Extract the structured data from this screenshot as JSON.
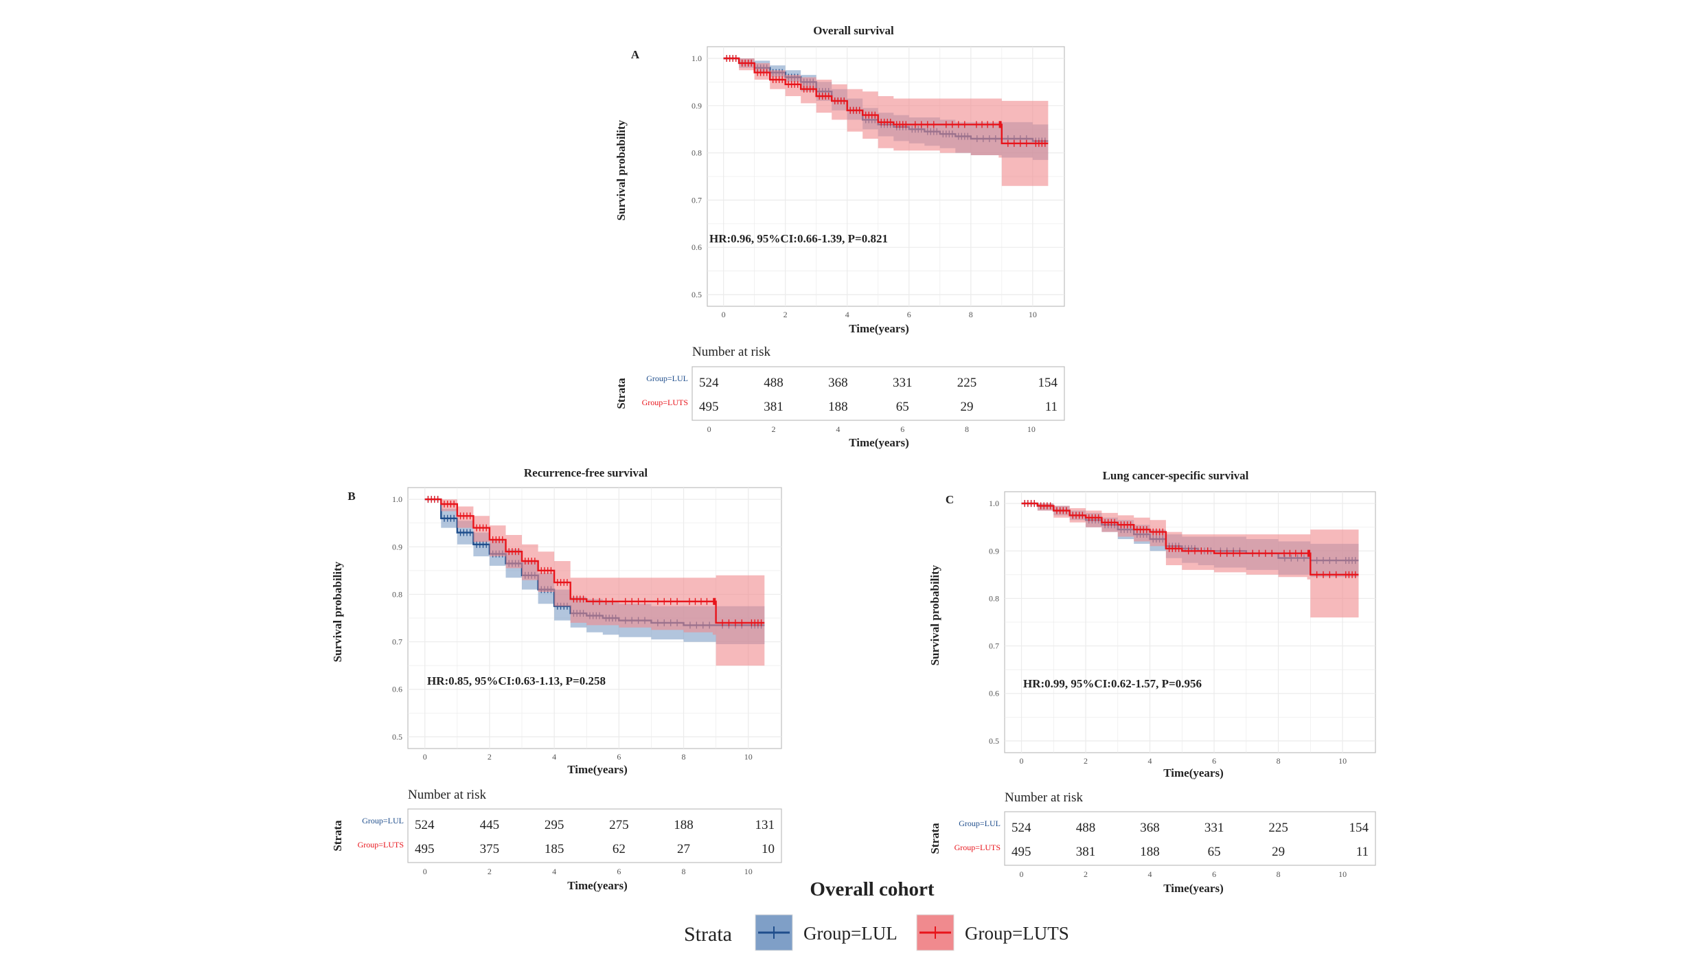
{
  "figure_title": "Overall cohort",
  "legend": {
    "title": "Strata",
    "items": [
      {
        "label": "Group=LUL",
        "color": "#1f4e8c",
        "fill": "#7f9fc7"
      },
      {
        "label": "Group=LUTS",
        "color": "#e8141b",
        "fill": "#f08a8e"
      }
    ]
  },
  "colors": {
    "lul_line": "#1f4e8c",
    "lul_band": "#7f9fc7",
    "luts_line": "#e8141b",
    "luts_band": "#f08a8e",
    "grid": "#ebebeb",
    "frame": "#bdbdbd"
  },
  "risk_table": {
    "title": "Number at risk",
    "strata_label": "Strata",
    "groups": [
      "Group=LUL",
      "Group=LUTS"
    ],
    "xlabel": "Time(years)"
  },
  "chart_data": [
    {
      "type": "line",
      "panel": "A",
      "title": "Overall survival",
      "xlabel": "Time(years)",
      "ylabel": "Survival probability",
      "xlim": [
        0,
        10.5
      ],
      "ylim": [
        0.5,
        1.0
      ],
      "x_ticks": [
        "0",
        "2",
        "4",
        "6",
        "8",
        "10"
      ],
      "y_ticks": [
        "0.5",
        "0.6",
        "0.7",
        "0.8",
        "0.9",
        "1.0"
      ],
      "annotation": "HR:0.96, 95%CI:0.66-1.39, P=0.821",
      "series": [
        {
          "name": "Group=LUL",
          "x": [
            0,
            0.5,
            1,
            1.5,
            2,
            2.5,
            3,
            3.5,
            4,
            4.5,
            5,
            5.5,
            6,
            6.5,
            7,
            7.5,
            8,
            9,
            10,
            10.5
          ],
          "y": [
            1.0,
            0.99,
            0.98,
            0.97,
            0.96,
            0.95,
            0.93,
            0.91,
            0.89,
            0.87,
            0.86,
            0.855,
            0.85,
            0.845,
            0.84,
            0.835,
            0.83,
            0.83,
            0.825,
            0.825
          ],
          "lower": [
            1.0,
            0.98,
            0.97,
            0.96,
            0.95,
            0.93,
            0.91,
            0.89,
            0.87,
            0.85,
            0.835,
            0.825,
            0.82,
            0.815,
            0.81,
            0.8,
            0.795,
            0.79,
            0.785,
            0.785
          ],
          "upper": [
            1.0,
            1.0,
            0.995,
            0.985,
            0.975,
            0.965,
            0.95,
            0.935,
            0.915,
            0.895,
            0.885,
            0.88,
            0.875,
            0.875,
            0.87,
            0.865,
            0.865,
            0.865,
            0.86,
            0.86
          ]
        },
        {
          "name": "Group=LUTS",
          "x": [
            0,
            0.5,
            1,
            1.5,
            2,
            2.5,
            3,
            3.5,
            4,
            4.5,
            5,
            5.5,
            6,
            7,
            8,
            8.9,
            9,
            10,
            10.5
          ],
          "y": [
            1.0,
            0.99,
            0.97,
            0.955,
            0.945,
            0.935,
            0.92,
            0.91,
            0.89,
            0.88,
            0.865,
            0.86,
            0.86,
            0.86,
            0.86,
            0.86,
            0.82,
            0.82,
            0.82
          ],
          "lower": [
            1.0,
            0.975,
            0.955,
            0.935,
            0.92,
            0.905,
            0.885,
            0.87,
            0.845,
            0.83,
            0.81,
            0.805,
            0.805,
            0.8,
            0.795,
            0.79,
            0.73,
            0.73,
            0.73
          ],
          "upper": [
            1.0,
            1.0,
            0.99,
            0.975,
            0.965,
            0.96,
            0.955,
            0.945,
            0.935,
            0.93,
            0.92,
            0.915,
            0.915,
            0.915,
            0.915,
            0.915,
            0.91,
            0.91,
            0.91
          ]
        }
      ],
      "risk": {
        "times": [
          "0",
          "2",
          "4",
          "6",
          "8",
          "10"
        ],
        "LUL": [
          524,
          488,
          368,
          331,
          225,
          154
        ],
        "LUTS": [
          495,
          381,
          188,
          65,
          29,
          11
        ]
      }
    },
    {
      "type": "line",
      "panel": "B",
      "title": "Recurrence-free survival",
      "xlabel": "Time(years)",
      "ylabel": "Survival probability",
      "xlim": [
        0,
        10.5
      ],
      "ylim": [
        0.5,
        1.0
      ],
      "x_ticks": [
        "0",
        "2",
        "4",
        "6",
        "8",
        "10"
      ],
      "y_ticks": [
        "0.5",
        "0.6",
        "0.7",
        "0.8",
        "0.9",
        "1.0"
      ],
      "annotation": "HR:0.85, 95%CI:0.63-1.13, P=0.258",
      "series": [
        {
          "name": "Group=LUL",
          "x": [
            0,
            0.5,
            1,
            1.5,
            2,
            2.5,
            3,
            3.5,
            4,
            4.5,
            5,
            5.5,
            6,
            7,
            8,
            9,
            10,
            10.5
          ],
          "y": [
            1.0,
            0.96,
            0.93,
            0.905,
            0.885,
            0.865,
            0.84,
            0.81,
            0.775,
            0.76,
            0.755,
            0.75,
            0.745,
            0.74,
            0.735,
            0.735,
            0.735,
            0.735
          ],
          "lower": [
            1.0,
            0.94,
            0.905,
            0.88,
            0.86,
            0.835,
            0.81,
            0.78,
            0.745,
            0.73,
            0.72,
            0.715,
            0.71,
            0.705,
            0.7,
            0.695,
            0.695,
            0.695
          ],
          "upper": [
            1.0,
            0.98,
            0.955,
            0.93,
            0.915,
            0.895,
            0.87,
            0.845,
            0.81,
            0.795,
            0.79,
            0.785,
            0.78,
            0.775,
            0.775,
            0.775,
            0.775,
            0.775
          ]
        },
        {
          "name": "Group=LUTS",
          "x": [
            0,
            0.5,
            1,
            1.5,
            2,
            2.5,
            3,
            3.5,
            4,
            4.5,
            5,
            6,
            7,
            8,
            8.9,
            9,
            10,
            10.5
          ],
          "y": [
            1.0,
            0.99,
            0.965,
            0.94,
            0.915,
            0.89,
            0.87,
            0.85,
            0.825,
            0.79,
            0.785,
            0.785,
            0.785,
            0.785,
            0.785,
            0.74,
            0.74,
            0.74
          ],
          "lower": [
            1.0,
            0.975,
            0.94,
            0.91,
            0.88,
            0.855,
            0.83,
            0.805,
            0.775,
            0.74,
            0.735,
            0.73,
            0.725,
            0.72,
            0.715,
            0.65,
            0.65,
            0.65
          ],
          "upper": [
            1.0,
            1.0,
            0.985,
            0.965,
            0.945,
            0.925,
            0.905,
            0.89,
            0.87,
            0.835,
            0.835,
            0.835,
            0.835,
            0.835,
            0.835,
            0.84,
            0.84,
            0.84
          ]
        }
      ],
      "risk": {
        "times": [
          "0",
          "2",
          "4",
          "6",
          "8",
          "10"
        ],
        "LUL": [
          524,
          445,
          295,
          275,
          188,
          131
        ],
        "LUTS": [
          495,
          375,
          185,
          62,
          27,
          10
        ]
      }
    },
    {
      "type": "line",
      "panel": "C",
      "title": "Lung cancer-specific survival",
      "xlabel": "Time(years)",
      "ylabel": "Survival probability",
      "xlim": [
        0,
        10.5
      ],
      "ylim": [
        0.5,
        1.0
      ],
      "x_ticks": [
        "0",
        "2",
        "4",
        "6",
        "8",
        "10"
      ],
      "y_ticks": [
        "0.5",
        "0.6",
        "0.7",
        "0.8",
        "0.9",
        "1.0"
      ],
      "annotation": "HR:0.99, 95%CI:0.62-1.57, P=0.956",
      "series": [
        {
          "name": "Group=LUL",
          "x": [
            0,
            0.5,
            1,
            1.5,
            2,
            2.5,
            3,
            3.5,
            4,
            4.5,
            5,
            5.5,
            6,
            7,
            8,
            9,
            10,
            10.5
          ],
          "y": [
            1.0,
            0.995,
            0.985,
            0.975,
            0.965,
            0.955,
            0.945,
            0.935,
            0.925,
            0.91,
            0.905,
            0.9,
            0.9,
            0.895,
            0.885,
            0.88,
            0.88,
            0.88
          ],
          "lower": [
            1.0,
            0.985,
            0.975,
            0.965,
            0.95,
            0.94,
            0.925,
            0.915,
            0.9,
            0.885,
            0.875,
            0.87,
            0.865,
            0.86,
            0.85,
            0.845,
            0.845,
            0.845
          ],
          "upper": [
            1.0,
            1.0,
            0.995,
            0.985,
            0.98,
            0.97,
            0.965,
            0.955,
            0.945,
            0.935,
            0.93,
            0.93,
            0.93,
            0.925,
            0.92,
            0.915,
            0.915,
            0.915
          ]
        },
        {
          "name": "Group=LUTS",
          "x": [
            0,
            0.5,
            1,
            1.5,
            2,
            2.5,
            3,
            3.5,
            4,
            4.5,
            5,
            6,
            7,
            8,
            8.9,
            9,
            10,
            10.5
          ],
          "y": [
            1.0,
            0.995,
            0.985,
            0.975,
            0.97,
            0.96,
            0.955,
            0.945,
            0.94,
            0.905,
            0.9,
            0.895,
            0.895,
            0.895,
            0.895,
            0.85,
            0.85,
            0.85
          ],
          "lower": [
            1.0,
            0.985,
            0.97,
            0.96,
            0.95,
            0.94,
            0.93,
            0.92,
            0.91,
            0.87,
            0.86,
            0.855,
            0.85,
            0.845,
            0.84,
            0.76,
            0.76,
            0.76
          ],
          "upper": [
            1.0,
            1.0,
            0.995,
            0.99,
            0.985,
            0.98,
            0.975,
            0.97,
            0.965,
            0.94,
            0.935,
            0.935,
            0.935,
            0.935,
            0.935,
            0.945,
            0.945,
            0.945
          ]
        }
      ],
      "risk": {
        "times": [
          "0",
          "2",
          "4",
          "6",
          "8",
          "10"
        ],
        "LUL": [
          524,
          488,
          368,
          331,
          225,
          154
        ],
        "LUTS": [
          495,
          381,
          188,
          65,
          29,
          11
        ]
      }
    }
  ]
}
